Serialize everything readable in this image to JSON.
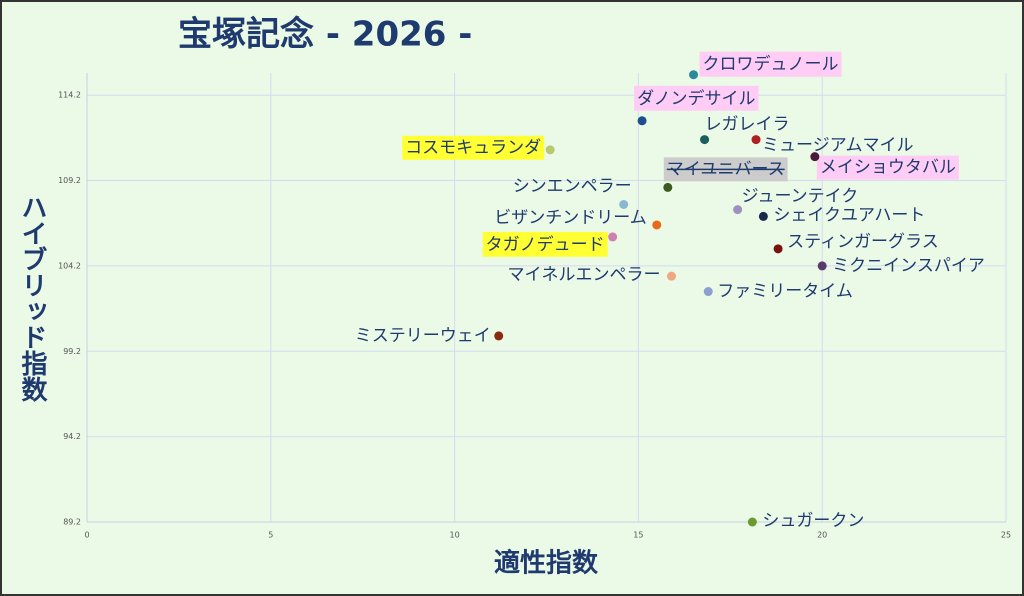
{
  "chart_data": {
    "type": "scatter",
    "title": "宝塚記念 - 2026 -",
    "xlabel": "適性指数",
    "ylabel": "ハイブリッド指数",
    "xlim": [
      0,
      25
    ],
    "xticks": [
      0,
      5,
      10,
      15,
      20,
      25
    ],
    "ylim": [
      89.2,
      115.5
    ],
    "yticks": [
      89.2,
      94.2,
      99.2,
      104.2,
      109.2,
      114.2
    ],
    "grid": true,
    "points": [
      {
        "name": "クロワデュノール",
        "x": 16.5,
        "y": 115.4,
        "color": "#2a8a9a",
        "highlight": "#ffccf5"
      },
      {
        "name": "ダノンデサイル",
        "x": 15.1,
        "y": 112.7,
        "color": "#1f4e8c",
        "highlight": "#ffccf5"
      },
      {
        "name": "レガレイラ",
        "x": 16.8,
        "y": 111.6,
        "color": "#1b5e5e"
      },
      {
        "name": "ミュージアムマイル",
        "x": 18.2,
        "y": 111.6,
        "color": "#b02020"
      },
      {
        "name": "コスモキュランダ",
        "x": 12.6,
        "y": 111.0,
        "color": "#b8c870",
        "highlight": "#ffff33"
      },
      {
        "name": "メイショウタバル",
        "x": 19.8,
        "y": 110.6,
        "color": "#4a1a3a",
        "highlight": "#ffccf5"
      },
      {
        "name": "マイユニバース",
        "x": 15.8,
        "y": 108.8,
        "color": "#3e5a1e",
        "highlight": "#cccccc",
        "strike": true
      },
      {
        "name": "シンエンペラー",
        "x": 14.6,
        "y": 107.8,
        "color": "#8ab8d0"
      },
      {
        "name": "ビザンチンドリーム",
        "x": 15.5,
        "y": 106.6,
        "color": "#e86a1a"
      },
      {
        "name": "タガノデュード",
        "x": 14.3,
        "y": 105.9,
        "color": "#d080b0",
        "highlight": "#ffff33"
      },
      {
        "name": "マイネルエンペラー",
        "x": 15.9,
        "y": 103.6,
        "color": "#f0a880"
      },
      {
        "name": "ファミリータイム",
        "x": 16.9,
        "y": 102.7,
        "color": "#8aa0d0"
      },
      {
        "name": "ジューンテイク",
        "x": 17.7,
        "y": 107.5,
        "color": "#a090c0"
      },
      {
        "name": "シェイクユアハート",
        "x": 18.4,
        "y": 107.1,
        "color": "#1a2a4a"
      },
      {
        "name": "スティンガーグラス",
        "x": 18.8,
        "y": 105.2,
        "color": "#7a1010"
      },
      {
        "name": "ミクニインスパイア",
        "x": 20.0,
        "y": 104.2,
        "color": "#5a3a6a"
      },
      {
        "name": "ミステリーウェイ",
        "x": 11.2,
        "y": 100.1,
        "color": "#8a2a10"
      },
      {
        "name": "シュガークン",
        "x": 18.1,
        "y": 89.2,
        "color": "#6a9a30"
      }
    ]
  }
}
